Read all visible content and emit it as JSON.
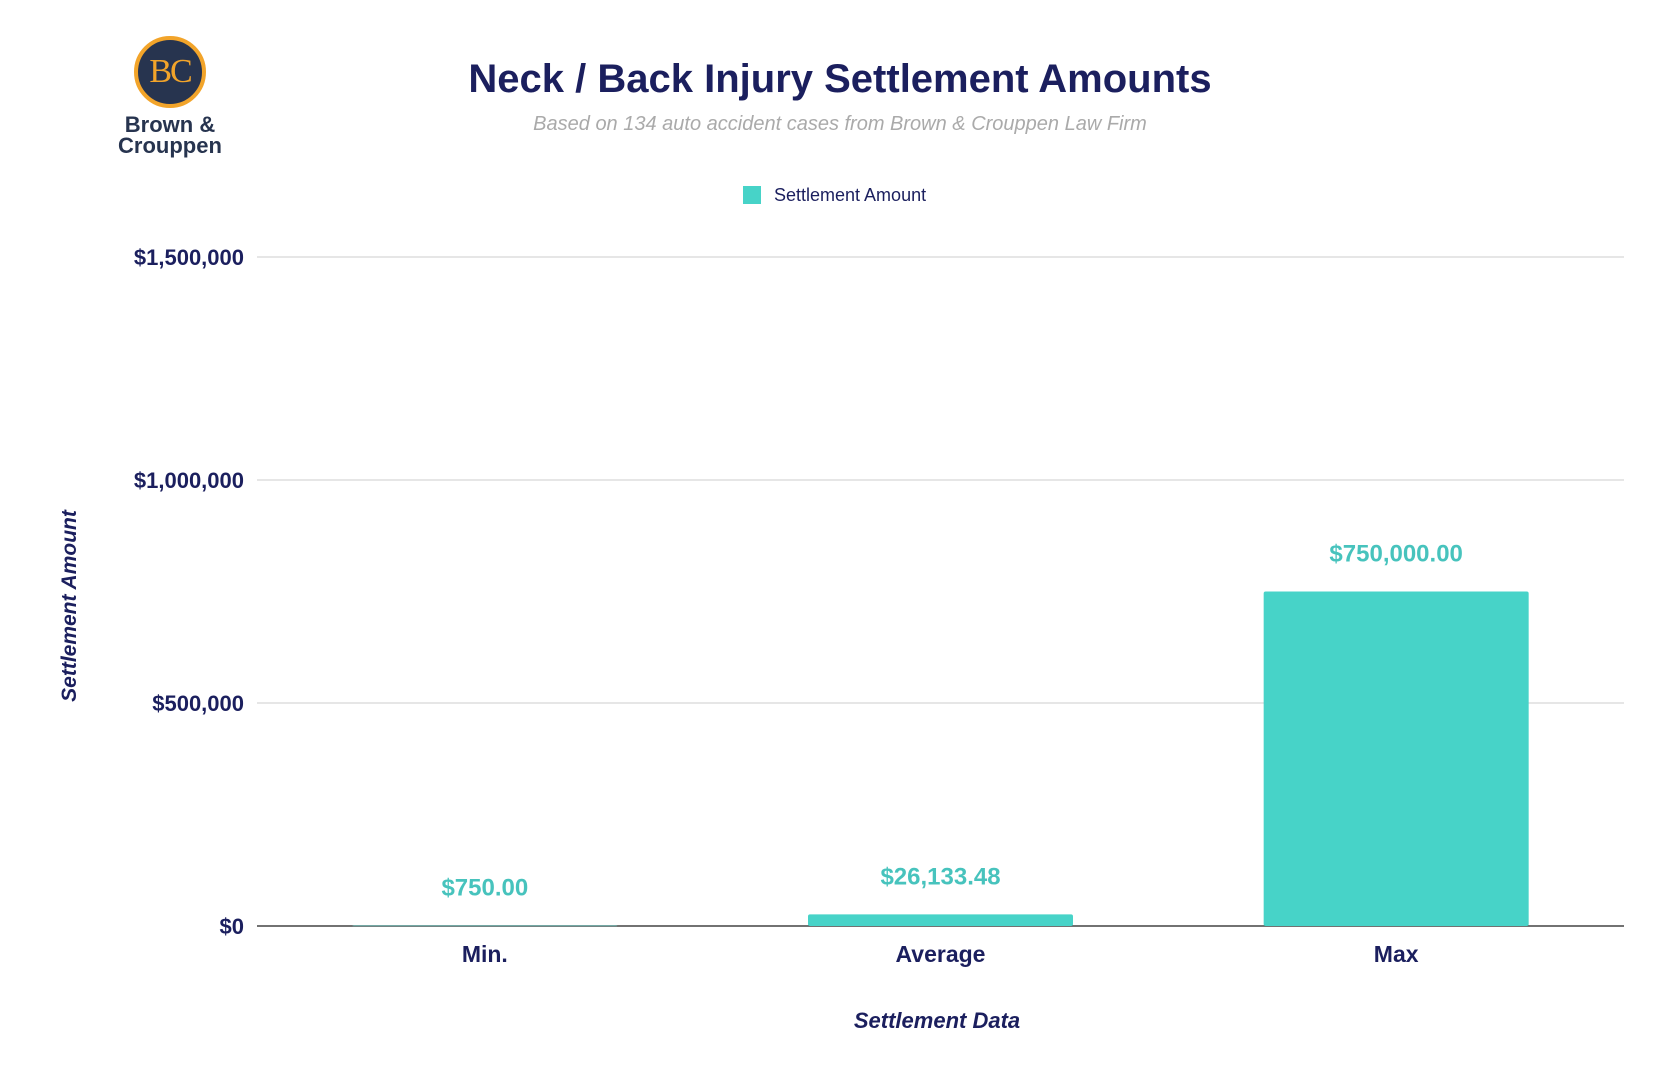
{
  "logo": {
    "monogram": "BC",
    "name_line1": "Brown &",
    "name_line2": "Crouppen"
  },
  "chart_data": {
    "type": "bar",
    "title": "Neck / Back Injury Settlement Amounts",
    "subtitle": "Based on 134 auto accident cases from Brown & Crouppen Law Firm",
    "xlabel": "Settlement Data",
    "ylabel": "Settlement Amount",
    "categories": [
      "Min.",
      "Average",
      "Max"
    ],
    "series": [
      {
        "name": "Settlement Amount",
        "values": [
          750.0,
          26133.48,
          750000.0
        ],
        "color": "#47d3c8"
      }
    ],
    "data_labels": [
      "$750.00",
      "$26,133.48",
      "$750,000.00"
    ],
    "ylim": [
      0,
      1500000
    ],
    "yticks": [
      0,
      500000,
      1000000,
      1500000
    ],
    "ytick_labels": [
      "$0",
      "$500,000",
      "$1,000,000",
      "$1,500,000"
    ],
    "grid": true,
    "legend": "top-center",
    "colors": {
      "text": "#1b1f5e",
      "bar": "#47d3c8",
      "subtitle": "#aaaaaa"
    }
  }
}
